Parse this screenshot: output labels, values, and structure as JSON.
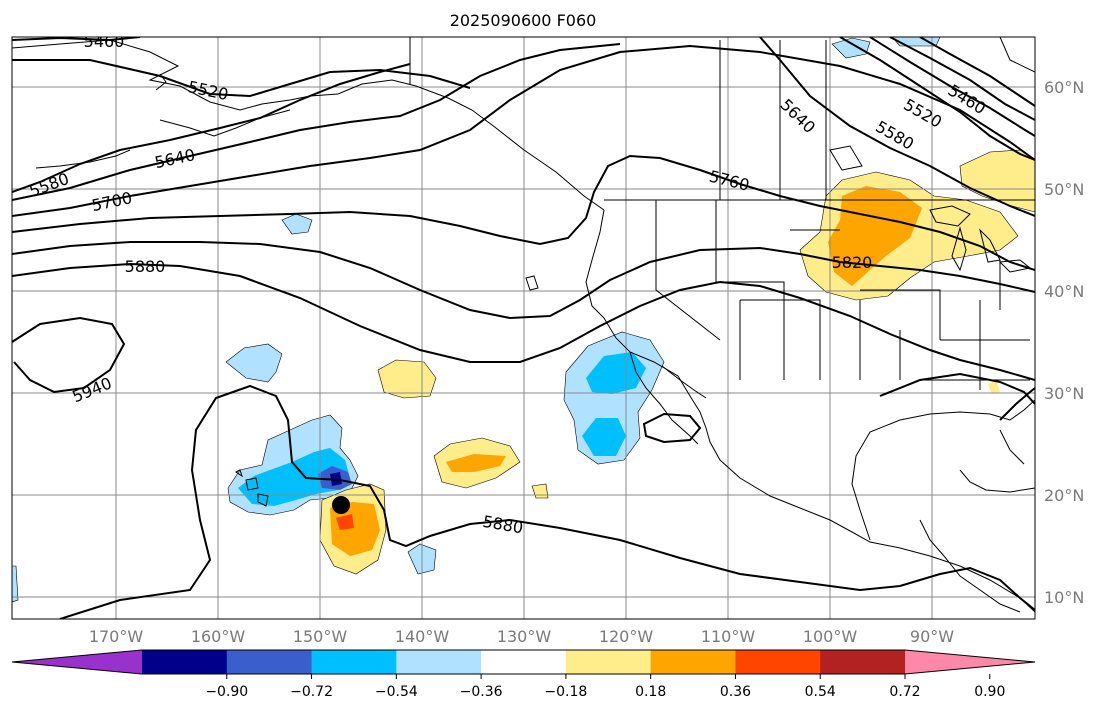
{
  "title": "2025090600 F060",
  "lon_labels": [
    "170°W",
    "160°W",
    "150°W",
    "140°W",
    "130°W",
    "120°W",
    "110°W",
    "100°W",
    "90°W"
  ],
  "lat_labels": [
    "60°N",
    "50°N",
    "40°N",
    "30°N",
    "20°N",
    "10°N"
  ],
  "contour_labels": [
    "5460",
    "5520",
    "5580",
    "5640",
    "5700",
    "5880",
    "5940",
    "5760",
    "5640",
    "5580",
    "5520",
    "5460",
    "5820",
    "5880"
  ],
  "colorbar": {
    "ticks": [
      "−0.90",
      "−0.72",
      "−0.54",
      "−0.36",
      "−0.18",
      "0.18",
      "0.36",
      "0.54",
      "0.72",
      "0.90"
    ],
    "colors": [
      "#9932cc",
      "#00008b",
      "#3a5fcd",
      "#00bfff",
      "#b0e2ff",
      "#ffffff",
      "#ffec8b",
      "#ffa500",
      "#ff4500",
      "#b22222",
      "#ff88aa"
    ]
  }
}
